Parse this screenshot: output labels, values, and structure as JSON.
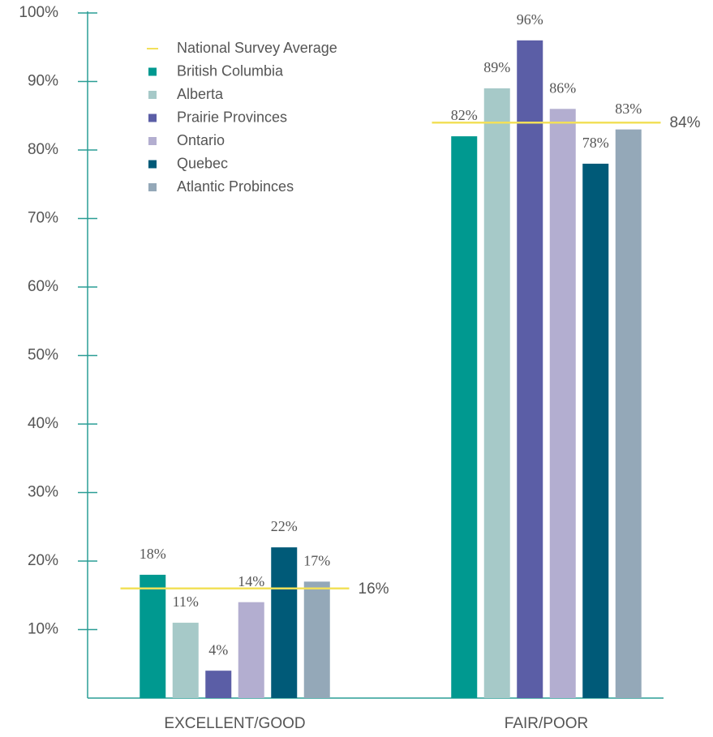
{
  "chart_data": {
    "type": "bar",
    "categories": [
      "EXCELLENT/GOOD",
      "FAIR/POOR"
    ],
    "series": [
      {
        "name": "British Columbia",
        "color": "#009990",
        "values": [
          18,
          82
        ],
        "value_labels": [
          "18%",
          "82%"
        ]
      },
      {
        "name": "Alberta",
        "color": "#a6c9c8",
        "values": [
          11,
          89
        ],
        "value_labels": [
          "11%",
          "89%"
        ]
      },
      {
        "name": "Prairie Provinces",
        "color": "#5b5ea6",
        "values": [
          4,
          96
        ],
        "value_labels": [
          "4%",
          "96%"
        ]
      },
      {
        "name": "Ontario",
        "color": "#b3aed0",
        "values": [
          14,
          86
        ],
        "value_labels": [
          "14%",
          "86%"
        ]
      },
      {
        "name": "Quebec",
        "color": "#005a78",
        "values": [
          22,
          78
        ],
        "value_labels": [
          "22%",
          "78%"
        ]
      },
      {
        "name": "Atlantic Probinces",
        "color": "#94a8b8",
        "values": [
          17,
          83
        ],
        "value_labels": [
          "17%",
          "83%"
        ]
      }
    ],
    "average": {
      "name": "National Survey Average",
      "color": "#f2e05a",
      "values": [
        16,
        84
      ],
      "value_labels": [
        "16%",
        "84%"
      ]
    },
    "ylim": [
      0,
      100
    ],
    "yticks": [
      {
        "value": 10,
        "label": "10%"
      },
      {
        "value": 20,
        "label": "20%"
      },
      {
        "value": 30,
        "label": "30%"
      },
      {
        "value": 40,
        "label": "40%"
      },
      {
        "value": 50,
        "label": "50%"
      },
      {
        "value": 60,
        "label": "60%"
      },
      {
        "value": 70,
        "label": "70%"
      },
      {
        "value": 80,
        "label": "80%"
      },
      {
        "value": 90,
        "label": "90%"
      },
      {
        "value": 100,
        "label": "100%"
      }
    ],
    "axis_color": "#2a9d95"
  }
}
